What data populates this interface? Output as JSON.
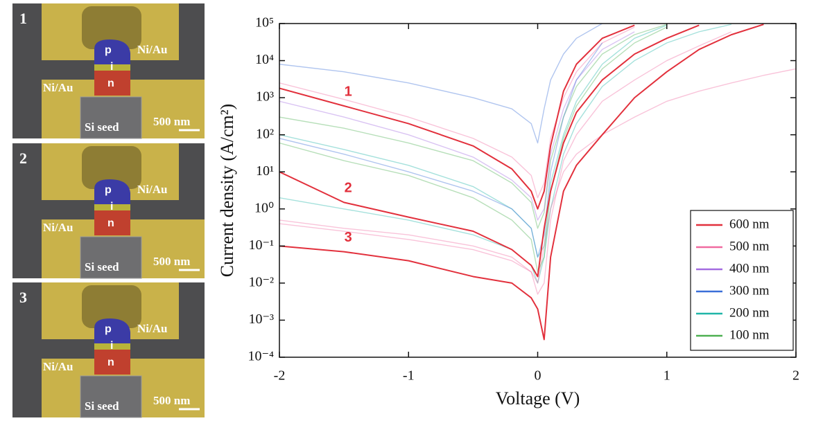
{
  "panels": [
    {
      "number": "1",
      "p": "p",
      "i": "i",
      "n": "n",
      "top_contact": "Ni/Au",
      "bottom_contact": "Ni/Au",
      "seed": "Si seed",
      "scale": "500 nm"
    },
    {
      "number": "2",
      "p": "p",
      "i": "i",
      "n": "n",
      "top_contact": "Ni/Au",
      "bottom_contact": "Ni/Au",
      "seed": "Si seed",
      "scale": "500 nm"
    },
    {
      "number": "3",
      "p": "p",
      "i": "i",
      "n": "n",
      "top_contact": "Ni/Au",
      "bottom_contact": "Ni/Au",
      "seed": "Si seed",
      "scale": "500 nm"
    }
  ],
  "chart_data": {
    "type": "line",
    "x_label": "Voltage (V)",
    "y_label": "Current density (A/cm²)",
    "ylog": true,
    "xlim": [
      -2,
      2
    ],
    "xticks": [
      -2,
      -1,
      0,
      1,
      2
    ],
    "ylim": [
      0.0001,
      100000
    ],
    "yticks": [
      {
        "value": 0.0001,
        "label": "10⁻⁴"
      },
      {
        "value": 0.001,
        "label": "10⁻³"
      },
      {
        "value": 0.01,
        "label": "10⁻²"
      },
      {
        "value": 0.1,
        "label": "10⁻¹"
      },
      {
        "value": 1,
        "label": "10⁰"
      },
      {
        "value": 10,
        "label": "10¹"
      },
      {
        "value": 100,
        "label": "10²"
      },
      {
        "value": 1000,
        "label": "10³"
      },
      {
        "value": 10000,
        "label": "10⁴"
      },
      {
        "value": 100000,
        "label": "10⁵"
      }
    ],
    "legend_position": "lower right",
    "x": [
      -2,
      -1.5,
      -1,
      -0.5,
      -0.2,
      -0.05,
      0,
      0.05,
      0.1,
      0.2,
      0.3,
      0.5,
      0.75,
      1,
      1.25,
      1.5,
      1.75,
      2
    ],
    "series": [
      {
        "name": "600 nm",
        "color": "#e2303c",
        "label": "1",
        "values": [
          1800,
          600,
          200,
          50,
          12,
          3,
          1,
          3,
          50,
          1500,
          8000,
          40000,
          90000,
          null,
          null,
          null,
          null,
          null
        ]
      },
      {
        "name": "500 nm",
        "color": "#f06aa0",
        "values": [
          2500,
          900,
          300,
          80,
          25,
          8,
          2,
          5,
          80,
          1000,
          5000,
          30000,
          80000,
          null,
          null,
          null,
          null,
          null
        ]
      },
      {
        "name": "400 nm",
        "color": "#a36be0",
        "values": [
          800,
          300,
          100,
          25,
          6,
          2,
          0.5,
          1,
          30,
          500,
          3000,
          20000,
          60000,
          null,
          null,
          null,
          null,
          null
        ]
      },
      {
        "name": "300 nm",
        "color": "#3a6fd8",
        "values": [
          8000,
          5000,
          2500,
          1000,
          500,
          200,
          60,
          500,
          3000,
          15000,
          40000,
          100000,
          null,
          null,
          null,
          null,
          null,
          null
        ]
      },
      {
        "name": "200 nm",
        "color": "#1fb5a8",
        "values": [
          100,
          40,
          15,
          4,
          1,
          0.3,
          0.05,
          0.1,
          5,
          100,
          800,
          8000,
          40000,
          90000,
          null,
          null,
          null,
          null
        ]
      },
      {
        "name": "100 nm",
        "color": "#4caf50",
        "values": [
          300,
          150,
          60,
          20,
          5,
          1.5,
          0.3,
          0.8,
          20,
          300,
          2000,
          15000,
          50000,
          95000,
          null,
          null,
          null,
          null
        ]
      },
      {
        "name": "600 nm",
        "color": "#e2303c",
        "label": "2",
        "values": [
          10,
          1.5,
          0.6,
          0.25,
          0.08,
          0.03,
          0.015,
          0.3,
          3,
          60,
          400,
          3000,
          15000,
          40000,
          90000,
          null,
          null,
          null
        ]
      },
      {
        "name": "600 nm",
        "color": "#e2303c",
        "label": "3",
        "values": [
          0.1,
          0.07,
          0.04,
          0.015,
          0.01,
          0.004,
          0.002,
          0.0003,
          0.05,
          3,
          15,
          100,
          1000,
          5000,
          20000,
          50000,
          95000,
          null
        ]
      },
      {
        "name": "200 nm",
        "color": "#1fb5a8",
        "values": [
          2,
          1,
          0.5,
          0.2,
          0.08,
          0.03,
          0.01,
          0.05,
          1,
          30,
          200,
          2000,
          10000,
          30000,
          60000,
          95000,
          null,
          null
        ]
      },
      {
        "name": "500 nm",
        "color": "#f06aa0",
        "values": [
          0.5,
          0.3,
          0.2,
          0.1,
          0.05,
          0.02,
          0.005,
          0.01,
          0.5,
          20,
          100,
          800,
          3000,
          10000,
          25000,
          60000,
          null,
          null
        ]
      },
      {
        "name": "500 nm",
        "color": "#f06aa0",
        "values": [
          0.4,
          0.25,
          0.15,
          0.08,
          0.04,
          0.02,
          0.01,
          0.1,
          1,
          10,
          30,
          100,
          300,
          800,
          1500,
          2500,
          4000,
          6000
        ]
      },
      {
        "name": "300 nm",
        "color": "#3a6fd8",
        "values": [
          80,
          30,
          10,
          3,
          1,
          0.3,
          0.05,
          0.2,
          10,
          300,
          3000,
          30000,
          null,
          null,
          null,
          null,
          null,
          null
        ]
      },
      {
        "name": "100 nm",
        "color": "#4caf50",
        "values": [
          60,
          20,
          8,
          2,
          0.5,
          0.15,
          0.02,
          0.05,
          3,
          80,
          600,
          6000,
          30000,
          80000,
          null,
          null,
          null,
          null
        ]
      }
    ]
  }
}
